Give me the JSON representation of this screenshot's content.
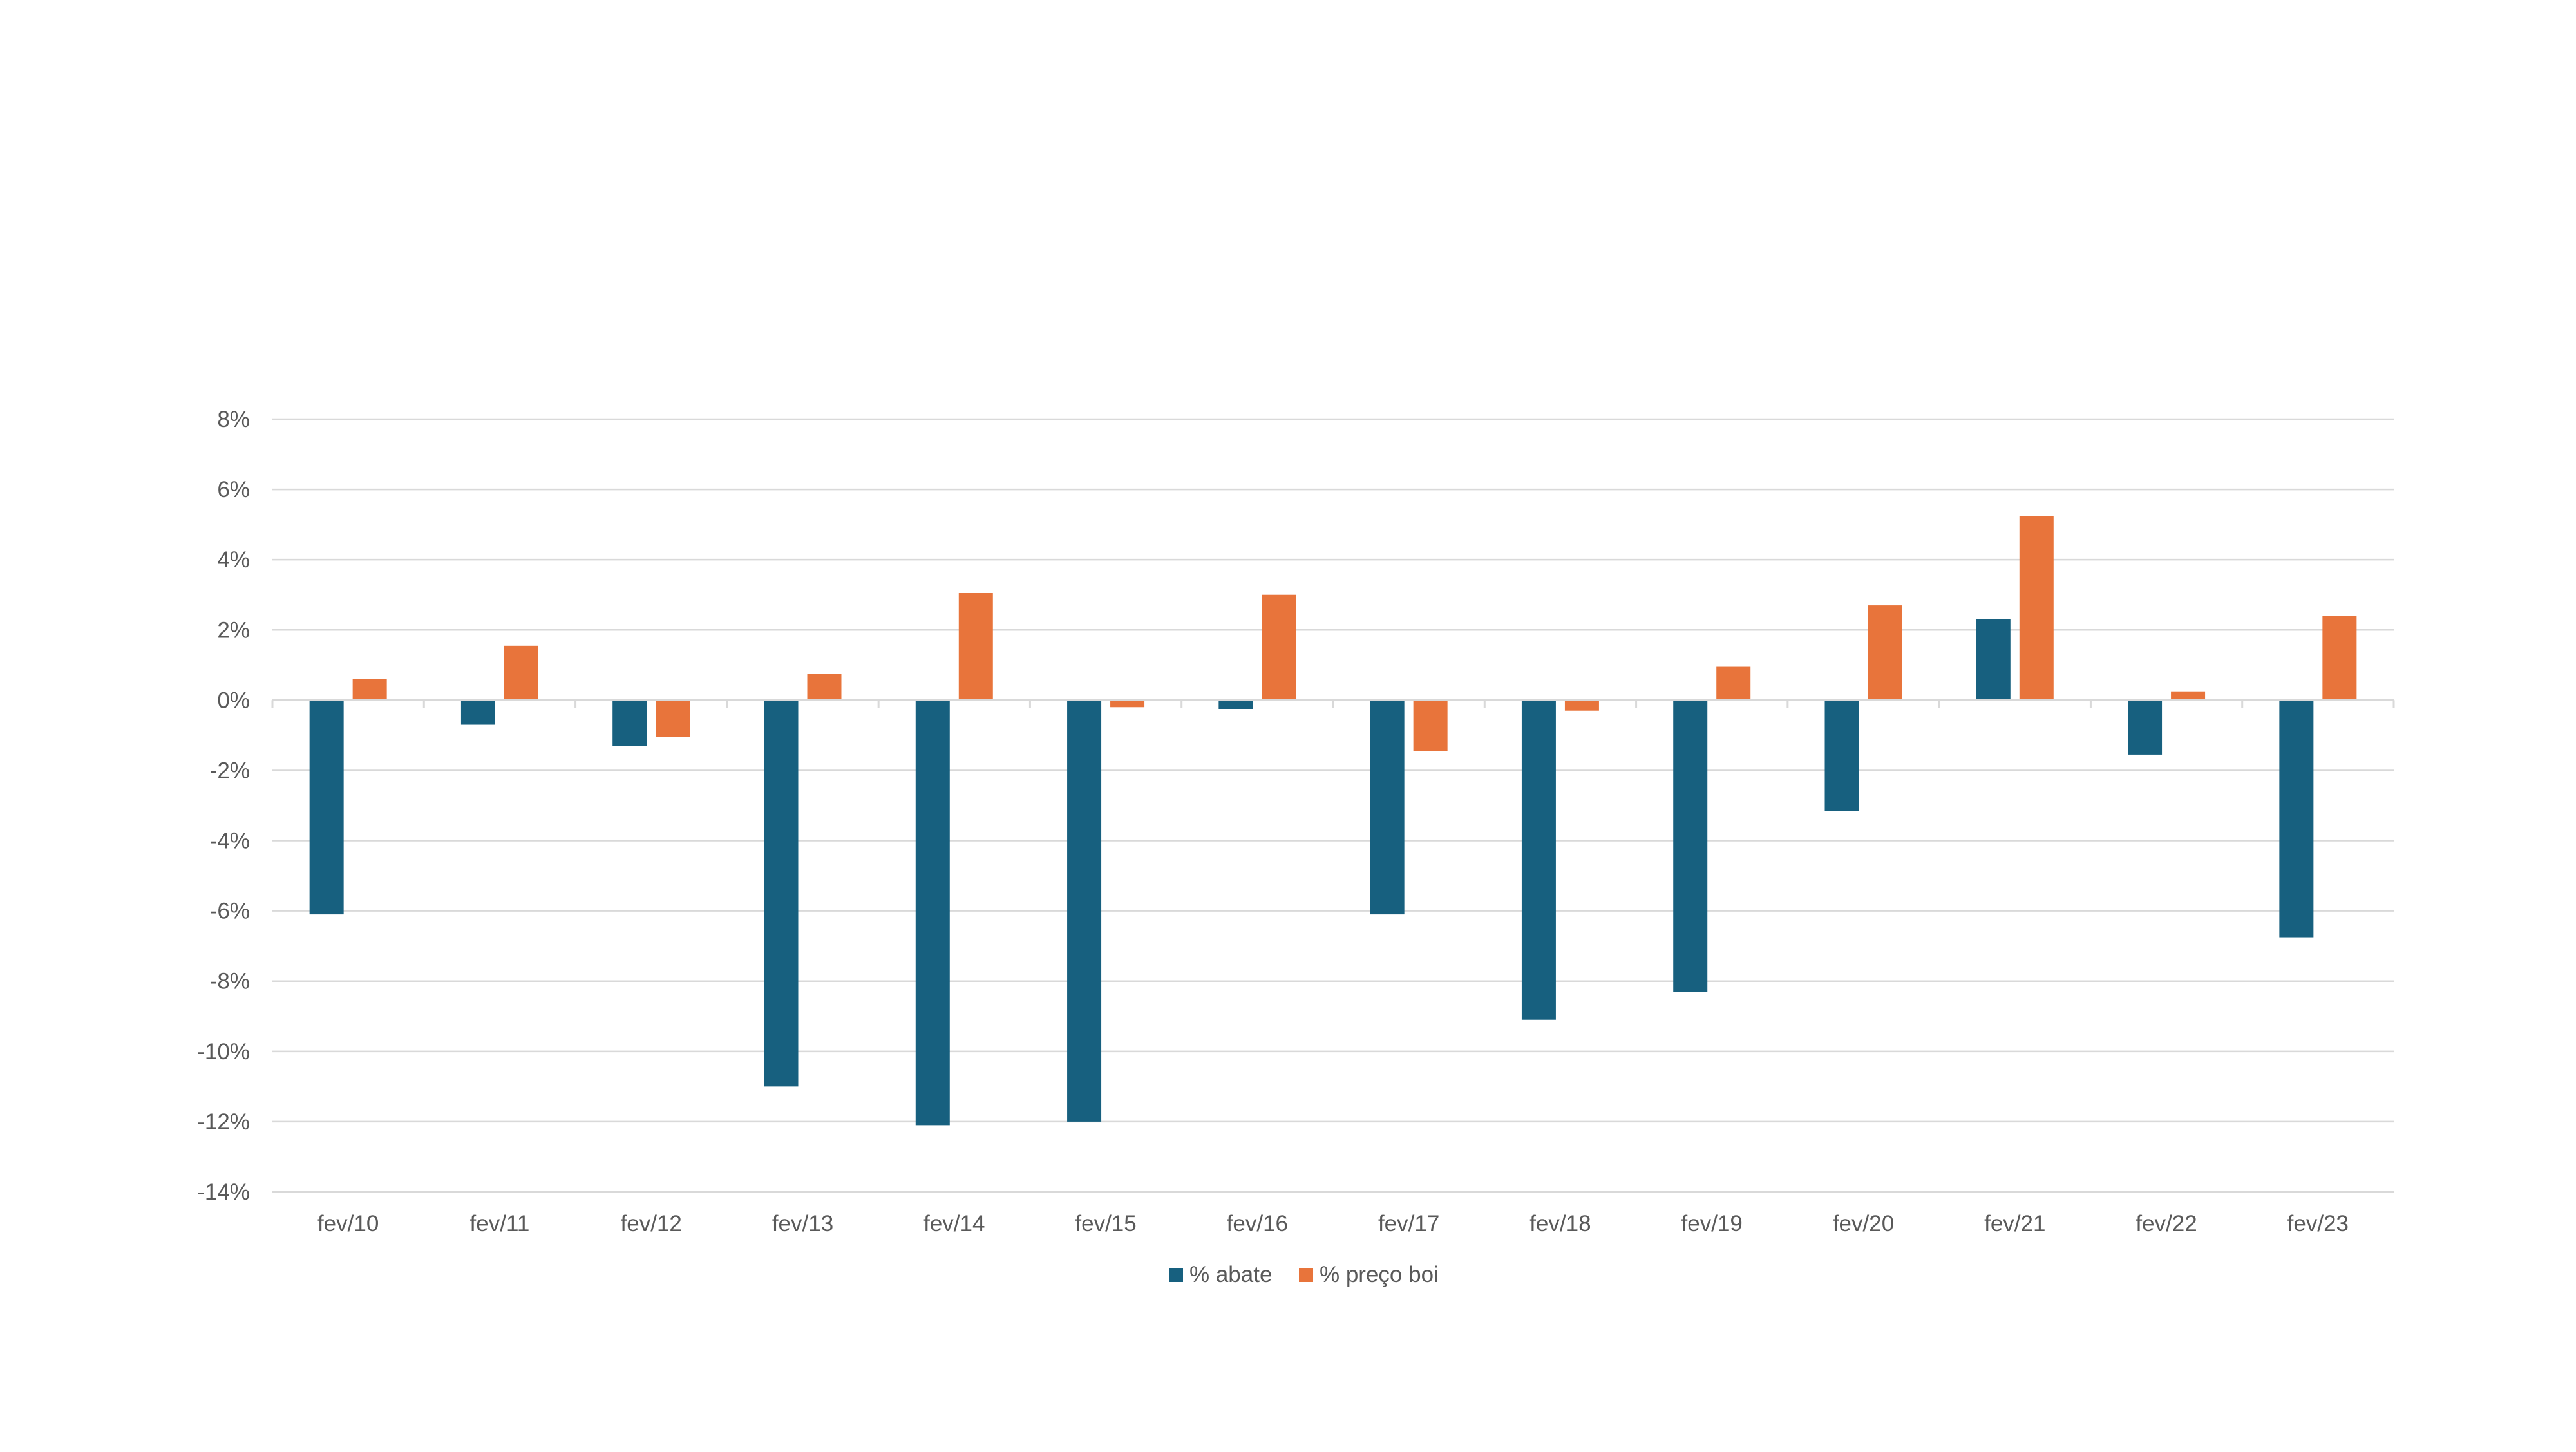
{
  "chart_data": {
    "type": "bar",
    "title": "",
    "xlabel": "",
    "ylabel": "",
    "categories": [
      "fev/10",
      "fev/11",
      "fev/12",
      "fev/13",
      "fev/14",
      "fev/15",
      "fev/16",
      "fev/17",
      "fev/18",
      "fev/19",
      "fev/20",
      "fev/21",
      "fev/22",
      "fev/23"
    ],
    "series": [
      {
        "name": "% abate",
        "color": "#17607f",
        "values": [
          -6.1,
          -0.7,
          -1.3,
          -11.0,
          -12.1,
          -12.0,
          -0.25,
          -6.1,
          -9.1,
          -8.3,
          -3.15,
          2.3,
          -1.55,
          -6.75
        ]
      },
      {
        "name": "% preço boi",
        "color": "#e8743b",
        "values": [
          0.6,
          1.55,
          -1.05,
          0.75,
          3.05,
          -0.2,
          3.0,
          -1.45,
          -0.3,
          0.95,
          2.7,
          5.25,
          0.25,
          2.4
        ]
      }
    ],
    "ylim": [
      -14,
      8
    ],
    "yticks": [
      8,
      6,
      4,
      2,
      0,
      -2,
      -4,
      -6,
      -8,
      -10,
      -12,
      -14
    ],
    "ytick_labels": [
      "8%",
      "6%",
      "4%",
      "2%",
      "0%",
      "-2%",
      "-4%",
      "-6%",
      "-8%",
      "-10%",
      "-12%",
      "-14%"
    ],
    "grid": true,
    "gridline_color": "#d9d9d9",
    "legend_position": "bottom"
  }
}
